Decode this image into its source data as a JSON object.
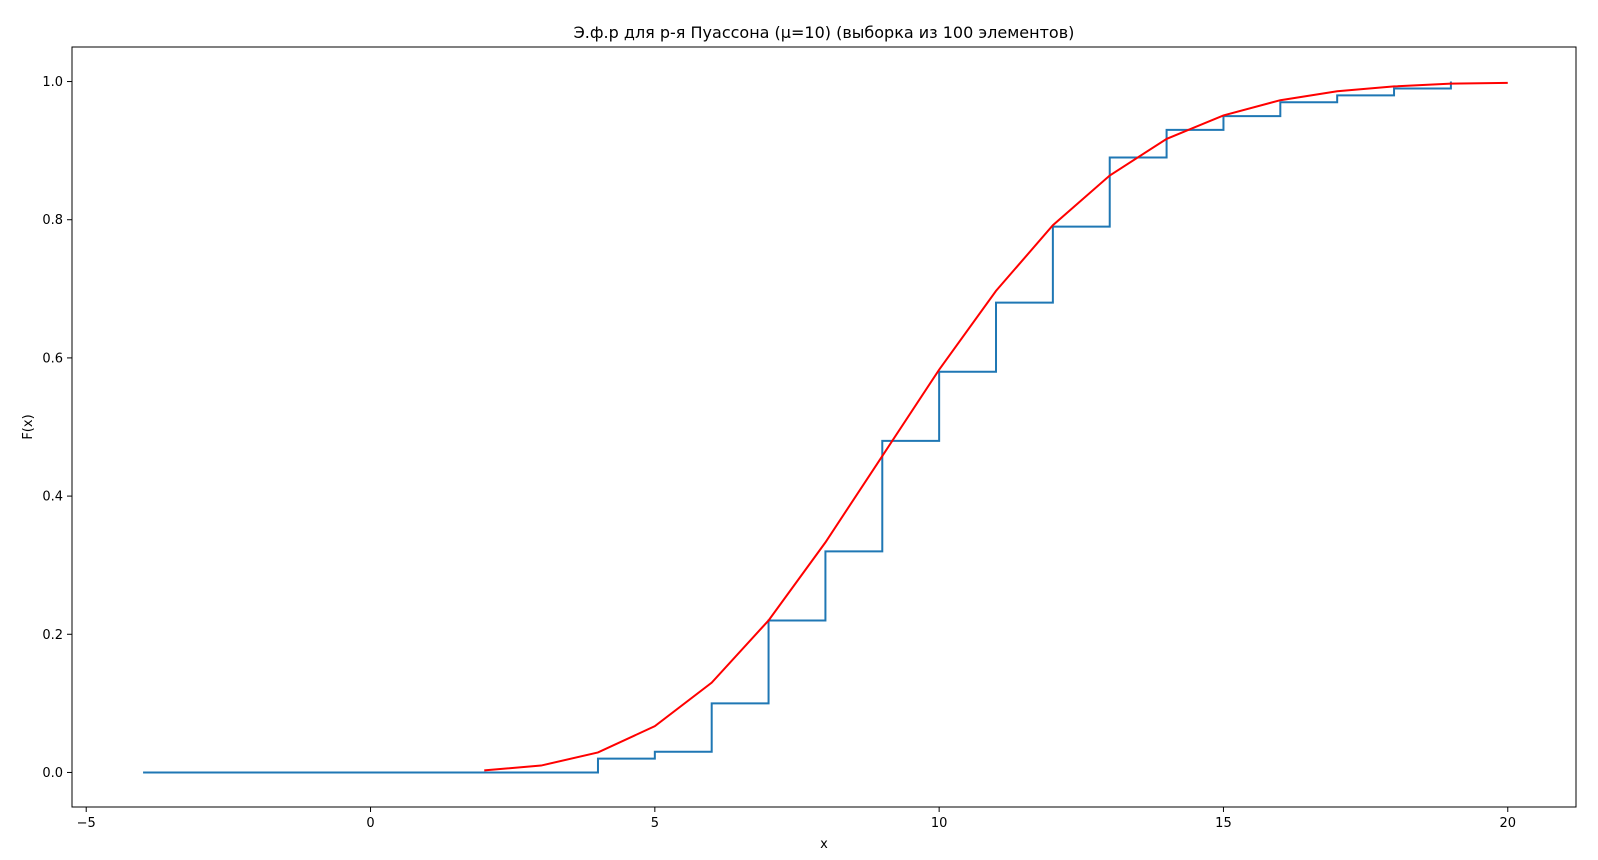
{
  "chart_data": {
    "type": "line",
    "title": "Э.ф.р для р-я Пуассона (μ=10) (выборка из 100 элементов)",
    "xlabel": "x",
    "ylabel": "F(x)",
    "xlim": [
      -5.25,
      21.2
    ],
    "ylim": [
      -0.05,
      1.05
    ],
    "xticks": [
      -5,
      0,
      5,
      10,
      15,
      20
    ],
    "yticks": [
      0.0,
      0.2,
      0.4,
      0.6,
      0.8,
      1.0
    ],
    "xtick_labels": [
      "−5",
      "0",
      "5",
      "10",
      "15",
      "20"
    ],
    "ytick_labels": [
      "0.0",
      "0.2",
      "0.4",
      "0.6",
      "0.8",
      "1.0"
    ],
    "grid": false,
    "series": [
      {
        "style": "step",
        "color": "#1f77b4",
        "x": [
          -4,
          4,
          5,
          6,
          7,
          8,
          9,
          10,
          11,
          12,
          13,
          14,
          15,
          16,
          17,
          18,
          19
        ],
        "y": [
          0.0,
          0.02,
          0.03,
          0.1,
          0.22,
          0.32,
          0.48,
          0.58,
          0.68,
          0.79,
          0.89,
          0.93,
          0.95,
          0.97,
          0.98,
          0.99,
          1.0
        ]
      },
      {
        "style": "line",
        "color": "#ff0000",
        "x": [
          2,
          3,
          4,
          5,
          6,
          7,
          8,
          9,
          10,
          11,
          12,
          13,
          14,
          15,
          16,
          17,
          18,
          19,
          20
        ],
        "y": [
          0.003,
          0.01,
          0.029,
          0.067,
          0.13,
          0.22,
          0.333,
          0.458,
          0.583,
          0.697,
          0.792,
          0.864,
          0.917,
          0.951,
          0.973,
          0.986,
          0.993,
          0.997,
          0.998
        ]
      }
    ]
  }
}
